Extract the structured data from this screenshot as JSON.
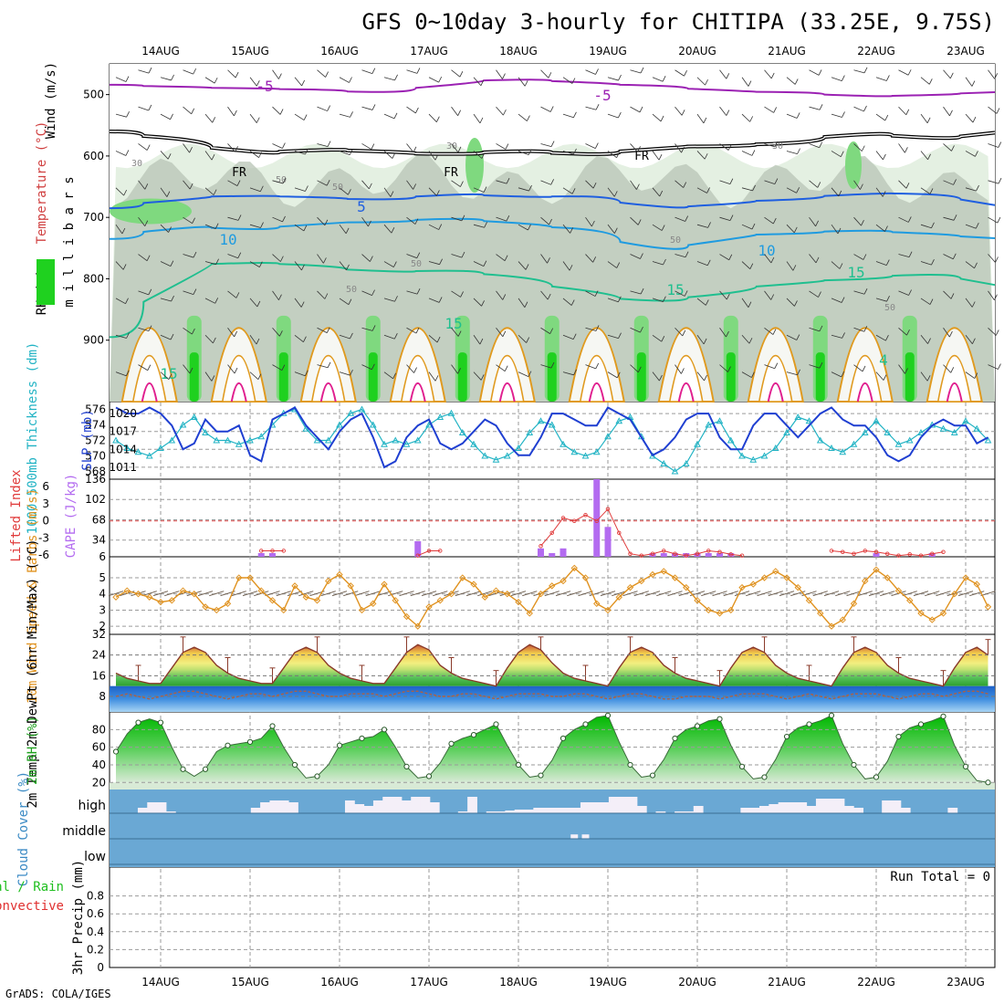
{
  "title": "GFS 0~10day 3-hourly for CHITIPA (33.25E, 9.75S)",
  "footer": "GrADS: COLA/IGES",
  "date_labels": [
    "14AUG",
    "15AUG",
    "16AUG",
    "17AUG",
    "18AUG",
    "19AUG",
    "20AUG",
    "21AUG",
    "22AUG",
    "23AUG"
  ],
  "colors": {
    "rh_dark": "#1fd11f",
    "rh_mid": "#7fd97f",
    "rh_light": "#dfeedd",
    "rh_grey": "#b8c4b6",
    "wind_barb": "#333333",
    "t_neg5": "#9b21b3",
    "t_fr": "#000000",
    "t_5": "#1f5fe0",
    "t_10": "#1f9be0",
    "t_15": "#1fbf8f",
    "t_warm": "#e09a1f",
    "t_hot": "#e01f8f",
    "slp": "#1f3fd1",
    "thick": "#21b3c4",
    "cape": "#b36bf0",
    "li": "#e03a3a",
    "wind10": "#e0921f",
    "cloud_bg": "#6aa8d4",
    "cloud_bar": "#f4eff8"
  },
  "chart_data": [
    {
      "type": "contour",
      "panel": "upper_air",
      "ylabel": "m i l l i b a r s",
      "legend_labels": [
        "Wind (m/s)",
        "Temperature (°C)",
        "RH (%)"
      ],
      "yticks": [
        500,
        600,
        700,
        800,
        900
      ],
      "ylim": [
        1000,
        450
      ],
      "contour_labels": [
        "-5",
        "-5",
        "FR",
        "FR",
        "FR",
        "5",
        "10",
        "10",
        "15",
        "15",
        "15",
        "15",
        "4",
        "30",
        "30",
        "30",
        "50",
        "50",
        "50",
        "50",
        "50",
        "50"
      ],
      "temperature_isolines": [
        {
          "label": "-5",
          "pressure": [
            484,
            488,
            490,
            492,
            498,
            480,
            474,
            482,
            486,
            495,
            496,
            504,
            500,
            496
          ]
        },
        {
          "label": "FR",
          "pressure": [
            560,
            575,
            598,
            588,
            594,
            598,
            590,
            600,
            585,
            584,
            578,
            560,
            574,
            562
          ]
        },
        {
          "label": "5",
          "pressure": [
            685,
            668,
            664,
            668,
            672,
            660,
            668,
            664,
            688,
            676,
            670,
            660,
            662,
            680
          ]
        },
        {
          "label": "10",
          "pressure": [
            735,
            712,
            722,
            708,
            708,
            700,
            712,
            720,
            760,
            730,
            726,
            720,
            728,
            734
          ]
        },
        {
          "label": "15",
          "pressure": [
            895,
            780,
            772,
            780,
            790,
            785,
            800,
            825,
            840,
            820,
            805,
            800,
            790,
            810
          ]
        }
      ]
    },
    {
      "type": "line",
      "panel": "slp_thickness",
      "series": [
        {
          "name": "SLP (mb)",
          "axis": "right",
          "values": [
            1017,
            1019,
            1021,
            1020,
            1020,
            1021,
            1020,
            1018,
            1014,
            1015,
            1019,
            1017,
            1017,
            1018,
            1013,
            1012,
            1019,
            1020,
            1021,
            1018,
            1016,
            1014,
            1017,
            1019,
            1020,
            1016,
            1011,
            1012,
            1016,
            1018,
            1019,
            1015,
            1014,
            1015,
            1017,
            1019,
            1018,
            1015,
            1013,
            1013,
            1016,
            1020,
            1020,
            1019,
            1018,
            1018,
            1021,
            1020,
            1019,
            1016,
            1013,
            1014,
            1016,
            1019,
            1020,
            1020,
            1016,
            1014,
            1014,
            1018,
            1020,
            1020,
            1018,
            1016,
            1018,
            1020,
            1021,
            1019,
            1018,
            1018,
            1016,
            1013,
            1012,
            1013,
            1016,
            1018,
            1019,
            1018,
            1018,
            1015,
            1016,
            1019
          ]
        },
        {
          "name": "1000-500mb Thickness (dm)",
          "axis": "left",
          "values": [
            573.5,
            574,
            572,
            571,
            570.5,
            570,
            571,
            572,
            574,
            575,
            573,
            572,
            572,
            571.5,
            572,
            572.5,
            574,
            575.5,
            576,
            573.5,
            572,
            572,
            574,
            575.5,
            576,
            574,
            571.5,
            572,
            571.5,
            572,
            574,
            575,
            575.5,
            573,
            571.5,
            570,
            569.5,
            570,
            571,
            573,
            574.5,
            574,
            571.5,
            570.5,
            570,
            570.5,
            572.5,
            574.5,
            575,
            572.5,
            570,
            569,
            568,
            569,
            571.5,
            574,
            574.5,
            572,
            570,
            569.5,
            570,
            571,
            573,
            575,
            574.5,
            572,
            571,
            570.5,
            571.5,
            573,
            574.5,
            573,
            571.5,
            572,
            573,
            574,
            573.5,
            573,
            574.5,
            573.5,
            572,
            573.5
          ]
        }
      ],
      "ylim_left": [
        567,
        577
      ],
      "yticks_left": [
        568,
        570,
        572,
        574,
        576
      ],
      "ylim_right": [
        1009,
        1022
      ],
      "yticks_right": [
        1011,
        1014,
        1017,
        1020
      ]
    },
    {
      "type": "bar+line",
      "panel": "cape_li",
      "series": [
        {
          "name": "CAPE (J/kg)",
          "type": "bar",
          "bars": [
            [
              0,
              6
            ],
            [
              15,
              0
            ],
            [
              16,
              0
            ],
            [
              29,
              32
            ],
            [
              40,
              20
            ],
            [
              41,
              4
            ],
            [
              42,
              20
            ],
            [
              45,
              136
            ],
            [
              46,
              56
            ],
            [
              50,
              0
            ],
            [
              51,
              0
            ],
            [
              52,
              0
            ],
            [
              53,
              0
            ],
            [
              54,
              0
            ],
            [
              55,
              2
            ],
            [
              56,
              12
            ],
            [
              57,
              8
            ],
            [
              70,
              4
            ],
            [
              75,
              6
            ]
          ]
        },
        {
          "name": "Lifted Index",
          "type": "line",
          "points": [
            [
              15,
              5
            ],
            [
              16,
              5
            ],
            [
              17,
              5
            ],
            [
              29,
              5.8
            ],
            [
              30,
              5
            ],
            [
              31,
              5
            ],
            [
              40,
              4.2
            ],
            [
              41,
              2
            ],
            [
              42,
              -0.5
            ],
            [
              43,
              0
            ],
            [
              44,
              -1
            ],
            [
              45,
              0
            ],
            [
              46,
              -2
            ],
            [
              47,
              2
            ],
            [
              48,
              5.5
            ],
            [
              49,
              5.8
            ],
            [
              50,
              5.5
            ],
            [
              51,
              5
            ],
            [
              52,
              5.5
            ],
            [
              53,
              5.8
            ],
            [
              54,
              5.5
            ],
            [
              55,
              5
            ],
            [
              56,
              5.2
            ],
            [
              57,
              5.6
            ],
            [
              58,
              5.8
            ],
            [
              66,
              5
            ],
            [
              67,
              5.2
            ],
            [
              68,
              5.5
            ],
            [
              69,
              5
            ],
            [
              70,
              5.2
            ],
            [
              71,
              5.5
            ],
            [
              72,
              5.8
            ],
            [
              73,
              5.6
            ],
            [
              74,
              5.8
            ],
            [
              75,
              5.5
            ],
            [
              76,
              5.2
            ]
          ]
        }
      ],
      "cape_ylim": [
        6,
        136
      ],
      "cape_yticks": [
        6,
        34,
        68,
        102,
        136
      ],
      "li_yticks": [
        6,
        3,
        0,
        -3,
        -6
      ],
      "li_ylim": [
        6,
        -7
      ]
    },
    {
      "type": "line",
      "panel": "wind10",
      "ylabel": "10m Wind Speed & Barbs (m/s)",
      "values": [
        3.5,
        4.0,
        3.8,
        4.2,
        4.0,
        3.8,
        3.5,
        3.6,
        4.2,
        4.0,
        3.2,
        3.0,
        3.4,
        5.0,
        5.0,
        4.2,
        3.6,
        3.0,
        4.5,
        3.8,
        3.6,
        4.8,
        5.2,
        4.5,
        3.0,
        3.4,
        4.6,
        3.6,
        2.6,
        2.0,
        3.2,
        3.6,
        4.0,
        5.0,
        4.6,
        3.8,
        4.2,
        4.0,
        3.5,
        2.8,
        4.0,
        4.5,
        4.8,
        5.6,
        5.0,
        3.4,
        3.0,
        3.8,
        4.4,
        4.8,
        5.2,
        5.4,
        5.0,
        4.4,
        3.6,
        3.0,
        2.8,
        3.0,
        4.4,
        4.6,
        5.0,
        5.4,
        5.0,
        4.4,
        3.6,
        2.8,
        2.0,
        2.4,
        3.4,
        4.8,
        5.5,
        5.0,
        4.2,
        3.6,
        2.8,
        2.4,
        2.8,
        4.0,
        5.0,
        4.6,
        3.2,
        2.2,
        2.6,
        3.2,
        4.2,
        4.0,
        3.8
      ],
      "ylim": [
        1.5,
        6.3
      ],
      "yticks": [
        2,
        3,
        4,
        5
      ]
    },
    {
      "type": "area",
      "panel": "temp_dewpt",
      "ylabel": "2m Temp 2m DewPt (6hr Min/Max) (°C)",
      "series": [
        {
          "name": "2m Temp",
          "values": [
            22,
            20,
            17,
            15,
            14,
            13,
            13,
            19,
            25,
            27,
            25,
            20,
            17,
            15,
            14,
            13,
            13,
            19,
            25,
            27,
            25,
            20,
            17,
            15,
            14,
            13,
            13,
            19,
            25,
            28,
            26,
            20,
            17,
            15,
            14,
            13,
            12,
            19,
            25,
            28,
            26,
            21,
            17,
            15,
            14,
            13,
            12,
            19,
            25,
            27,
            25,
            20,
            17,
            15,
            14,
            13,
            12,
            19,
            25,
            27,
            25,
            20,
            17,
            15,
            14,
            13,
            12,
            19,
            25,
            27,
            25,
            20,
            17,
            15,
            14,
            13,
            12,
            19,
            25,
            27,
            24,
            20,
            17,
            15,
            13,
            12,
            13
          ]
        },
        {
          "name": "2m DewPt",
          "values": [
            8,
            7,
            8,
            9,
            8,
            7,
            8,
            9,
            10,
            10,
            9,
            8,
            7,
            8,
            9,
            9,
            8,
            9,
            10,
            10,
            9,
            8,
            8,
            9,
            9,
            9,
            8,
            9,
            10,
            10,
            9,
            8,
            8,
            9,
            9,
            8,
            7,
            8,
            9,
            9,
            9,
            8,
            8,
            9,
            9,
            8,
            7,
            8,
            9,
            9,
            8,
            7,
            7,
            8,
            8,
            8,
            7,
            8,
            9,
            9,
            9,
            8,
            7,
            8,
            9,
            8,
            7,
            8,
            9,
            9,
            9,
            8,
            7,
            8,
            9,
            9,
            8,
            9,
            10,
            10,
            9,
            8,
            8,
            9,
            9,
            8,
            9
          ]
        }
      ],
      "ylim": [
        2,
        32
      ],
      "yticks": [
        8,
        16,
        24,
        32
      ]
    },
    {
      "type": "area",
      "panel": "rh2m",
      "ylabel": "2m RH (%)",
      "values": [
        35,
        33,
        55,
        75,
        88,
        92,
        88,
        60,
        35,
        27,
        35,
        55,
        62,
        64,
        66,
        70,
        84,
        60,
        40,
        25,
        27,
        40,
        62,
        66,
        70,
        72,
        80,
        60,
        38,
        25,
        27,
        42,
        64,
        70,
        74,
        80,
        86,
        62,
        40,
        26,
        28,
        45,
        70,
        80,
        86,
        94,
        96,
        66,
        40,
        26,
        28,
        46,
        70,
        80,
        84,
        90,
        92,
        62,
        38,
        24,
        26,
        46,
        72,
        82,
        86,
        90,
        96,
        64,
        40,
        24,
        26,
        44,
        72,
        82,
        86,
        90,
        95,
        62,
        38,
        22,
        20,
        42,
        70,
        80,
        86,
        90,
        95,
        60
      ],
      "ylim": [
        12,
        100
      ],
      "yticks": [
        20,
        40,
        60,
        80
      ]
    },
    {
      "type": "bar",
      "panel": "cloud",
      "ylabel": "Cloud Cover (%)",
      "yticks": [
        "high",
        "middle",
        "low"
      ],
      "high": [
        0,
        0,
        0,
        0.3,
        0.6,
        0.6,
        0.1,
        0,
        0,
        0,
        0,
        0,
        0,
        0,
        0,
        0.3,
        0.6,
        0.7,
        0.7,
        0.6,
        0,
        0,
        0,
        0,
        0,
        0.7,
        0.5,
        0.4,
        0.7,
        0.9,
        0.9,
        0.7,
        0.9,
        0.9,
        0.6,
        0,
        0,
        0.1,
        0.9,
        0,
        0.1,
        0.1,
        0.15,
        0.2,
        0.2,
        0.3,
        0.3,
        0.3,
        0.3,
        0.3,
        0.6,
        0.6,
        0.6,
        0.9,
        0.9,
        0.9,
        0.4,
        0,
        0.1,
        0,
        0.1,
        0.1,
        0.4,
        0,
        0,
        0,
        0,
        0.3,
        0.3,
        0.4,
        0.5,
        0.6,
        0.6,
        0.6,
        0.4,
        0.8,
        0.8,
        0.8,
        0.4,
        0.3,
        0,
        0,
        0.7,
        0.7,
        0.3,
        0,
        0,
        0,
        0,
        0.3,
        0,
        0,
        0,
        0
      ],
      "middle": [
        0,
        0,
        0,
        0,
        0,
        0,
        0,
        0,
        0,
        0,
        0,
        0,
        0,
        0,
        0,
        0,
        0,
        0,
        0,
        0,
        0,
        0,
        0,
        0,
        0,
        0,
        0,
        0,
        0,
        0,
        0,
        0,
        0,
        0,
        0,
        0,
        0,
        0,
        0,
        0,
        0,
        0,
        0,
        0.3,
        0.3,
        0,
        0,
        0,
        0,
        0,
        0,
        0,
        0,
        0,
        0,
        0,
        0,
        0,
        0,
        0,
        0,
        0,
        0,
        0,
        0,
        0,
        0,
        0,
        0,
        0,
        0,
        0,
        0,
        0,
        0,
        0,
        0,
        0,
        0,
        0,
        0,
        0,
        0,
        0,
        0,
        0
      ],
      "low": []
    },
    {
      "type": "line",
      "panel": "precip",
      "ylabel": "3hr Precip (mm)",
      "legend_labels": [
        "Total / Rain",
        "Convective"
      ],
      "annotation": "Run Total = 0",
      "values": [],
      "ylim": [
        0,
        1
      ],
      "yticks": [
        0,
        0.2,
        0.4,
        0.6,
        0.8
      ]
    }
  ]
}
